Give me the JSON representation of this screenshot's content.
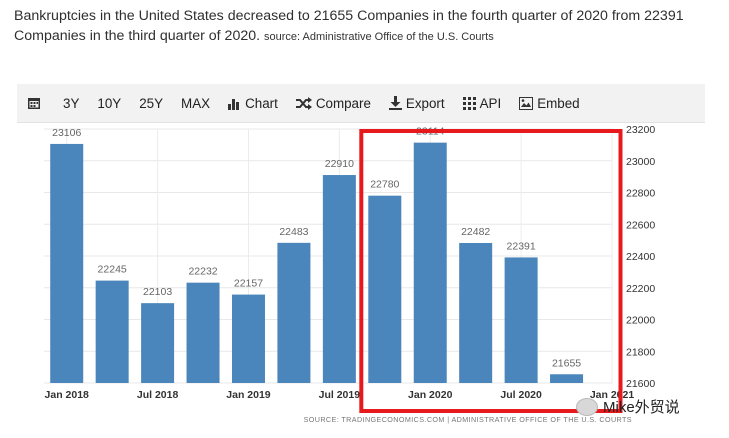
{
  "headline": {
    "main": "Bankruptcies in the United States decreased to 21655 Companies in the fourth quarter of 2020 from 22391 Companies in the third quarter of 2020.",
    "source": "source: Administrative Office of the U.S. Courts"
  },
  "toolbar": {
    "items": [
      "3Y",
      "10Y",
      "25Y",
      "MAX"
    ],
    "chart_label": "Chart",
    "compare_label": "Compare",
    "export_label": "Export",
    "api_label": "API",
    "embed_label": "Embed"
  },
  "chart_data": {
    "type": "bar",
    "title": "",
    "xlabel": "",
    "ylabel": "",
    "categories": [
      "Q1 2018",
      "Q2 2018",
      "Q3 2018",
      "Q4 2018",
      "Q1 2019",
      "Q2 2019",
      "Q3 2019",
      "Q4 2019",
      "Q1 2020",
      "Q2 2020",
      "Q3 2020",
      "Q4 2020"
    ],
    "values": [
      23106,
      22245,
      22103,
      22232,
      22157,
      22483,
      22910,
      22780,
      23114,
      22482,
      22391,
      21655
    ],
    "x_tick_labels": [
      {
        "label": "Jan 2018",
        "index": 0
      },
      {
        "label": "Jul 2018",
        "index": 2
      },
      {
        "label": "Jan 2019",
        "index": 4
      },
      {
        "label": "Jul 2019",
        "index": 6
      },
      {
        "label": "Jan 2020",
        "index": 8
      },
      {
        "label": "Jul 2020",
        "index": 10
      },
      {
        "label": "Jan 2021",
        "index": 12
      }
    ],
    "y_ticks": [
      21600,
      21800,
      22000,
      22200,
      22400,
      22600,
      22800,
      23000,
      23200
    ],
    "ylim": [
      21600,
      23200
    ],
    "y_axis_position": "right",
    "bar_color": "#4a86bb",
    "highlight_color": "#e8191c",
    "highlight_range": [
      7,
      11
    ],
    "source_text": "SOURCE: TRADINGECONOMICS.COM  |  ADMINISTRATIVE OFFICE OF THE U.S. COURTS"
  },
  "watermark": {
    "text": "Mike外贸说"
  }
}
